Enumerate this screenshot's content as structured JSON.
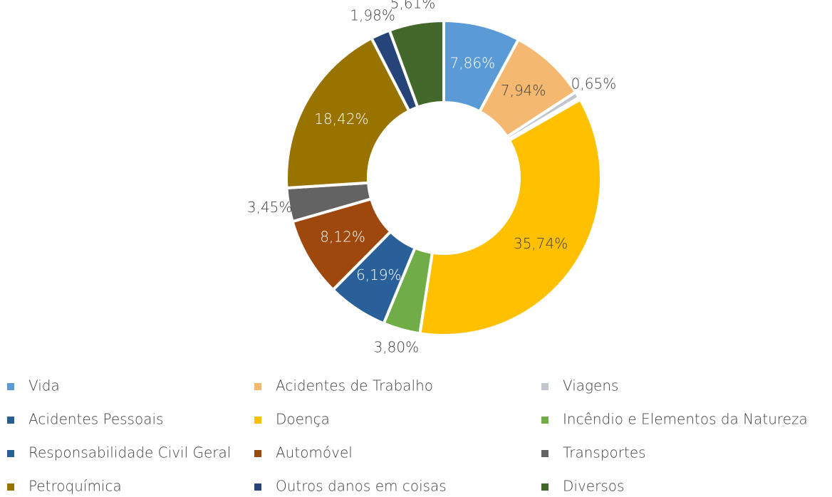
{
  "chart_data": {
    "type": "donut",
    "categories": [
      "Vida",
      "Acidentes de Trabalho",
      "Viagens",
      "Acidentes Pessoais",
      "Doença",
      "Incêndio e Elementos da Natureza",
      "Responsabilidade Civil Geral",
      "Automóvel",
      "Transportes",
      "Petroquímica",
      "Outros danos em coisas",
      "Diversos"
    ],
    "values": [
      7.86,
      7.94,
      0.65,
      0.24,
      35.74,
      3.8,
      6.19,
      8.12,
      3.45,
      18.42,
      1.98,
      5.61
    ],
    "value_labels": [
      "7,86%",
      "7,94%",
      "0,65%",
      null,
      "35,74%",
      "3,80%",
      "6,19%",
      "8,12%",
      "3,45%",
      "18,42%",
      "1,98%",
      "5,61%"
    ],
    "colors": [
      "#5b9bd5",
      "#f4b870",
      "#c0c6cc",
      "#255e91",
      "#ffc000",
      "#70ad47",
      "#2a6099",
      "#9e480e",
      "#636363",
      "#997300",
      "#264478",
      "#43682b"
    ],
    "legend": "bottom"
  }
}
